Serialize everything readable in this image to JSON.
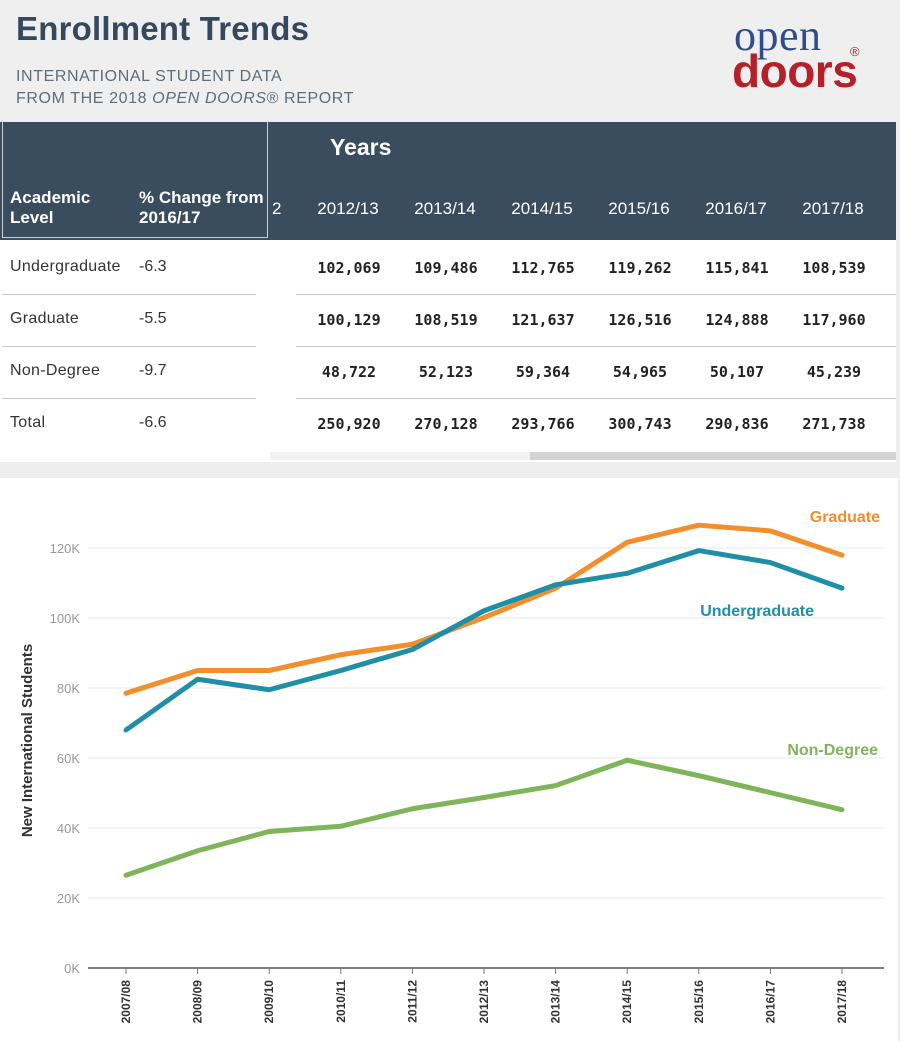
{
  "header": {
    "title": "Enrollment Trends",
    "subtitle_line1": "INTERNATIONAL STUDENT DATA",
    "subtitle_line2_prefix": "FROM THE 2018 ",
    "subtitle_line2_italic": "OPEN DOORS",
    "subtitle_line2_suffix": "® REPORT"
  },
  "logo": {
    "word1": "open",
    "word2": "doors",
    "reg": "®"
  },
  "table": {
    "group_header": "Years",
    "col_level": "Academic Level",
    "col_change": "% Change from 2016/17",
    "cut_column_fragment": "2",
    "years": [
      "2012/13",
      "2013/14",
      "2014/15",
      "2015/16",
      "2016/17",
      "2017/18"
    ],
    "rows": [
      {
        "level": "Undergraduate",
        "change": "-6.3",
        "values": [
          "102,069",
          "109,486",
          "112,765",
          "119,262",
          "115,841",
          "108,539"
        ]
      },
      {
        "level": "Graduate",
        "change": "-5.5",
        "values": [
          "100,129",
          "108,519",
          "121,637",
          "126,516",
          "124,888",
          "117,960"
        ]
      },
      {
        "level": "Non-Degree",
        "change": "-9.7",
        "values": [
          "48,722",
          "52,123",
          "59,364",
          "54,965",
          "50,107",
          "45,239"
        ]
      },
      {
        "level": "Total",
        "change": "-6.6",
        "values": [
          "250,920",
          "270,128",
          "293,766",
          "300,743",
          "290,836",
          "271,738"
        ]
      }
    ]
  },
  "chart_data": {
    "type": "line",
    "ylabel": "New International Students",
    "ylim": [
      0,
      130000
    ],
    "yticks": [
      0,
      20000,
      40000,
      60000,
      80000,
      100000,
      120000
    ],
    "ytick_labels": [
      "0K",
      "20K",
      "40K",
      "60K",
      "80K",
      "100K",
      "120K"
    ],
    "grid": true,
    "categories": [
      "2007/08",
      "2008/09",
      "2009/10",
      "2010/11",
      "2011/12",
      "2012/13",
      "2013/14",
      "2014/15",
      "2015/16",
      "2016/17",
      "2017/18"
    ],
    "series": [
      {
        "name": "Graduate",
        "color": "#f28e2b",
        "values": [
          78500,
          85000,
          85000,
          89500,
          92500,
          100129,
          108519,
          121637,
          126516,
          124888,
          117960
        ]
      },
      {
        "name": "Undergraduate",
        "color": "#1f8fa8",
        "values": [
          68000,
          82500,
          79500,
          85000,
          91000,
          102069,
          109486,
          112765,
          119262,
          115841,
          108539
        ]
      },
      {
        "name": "Non-Degree",
        "color": "#7fb55a",
        "values": [
          26500,
          33500,
          39000,
          40500,
          45500,
          48722,
          52123,
          59364,
          54965,
          50107,
          45239
        ]
      }
    ]
  }
}
